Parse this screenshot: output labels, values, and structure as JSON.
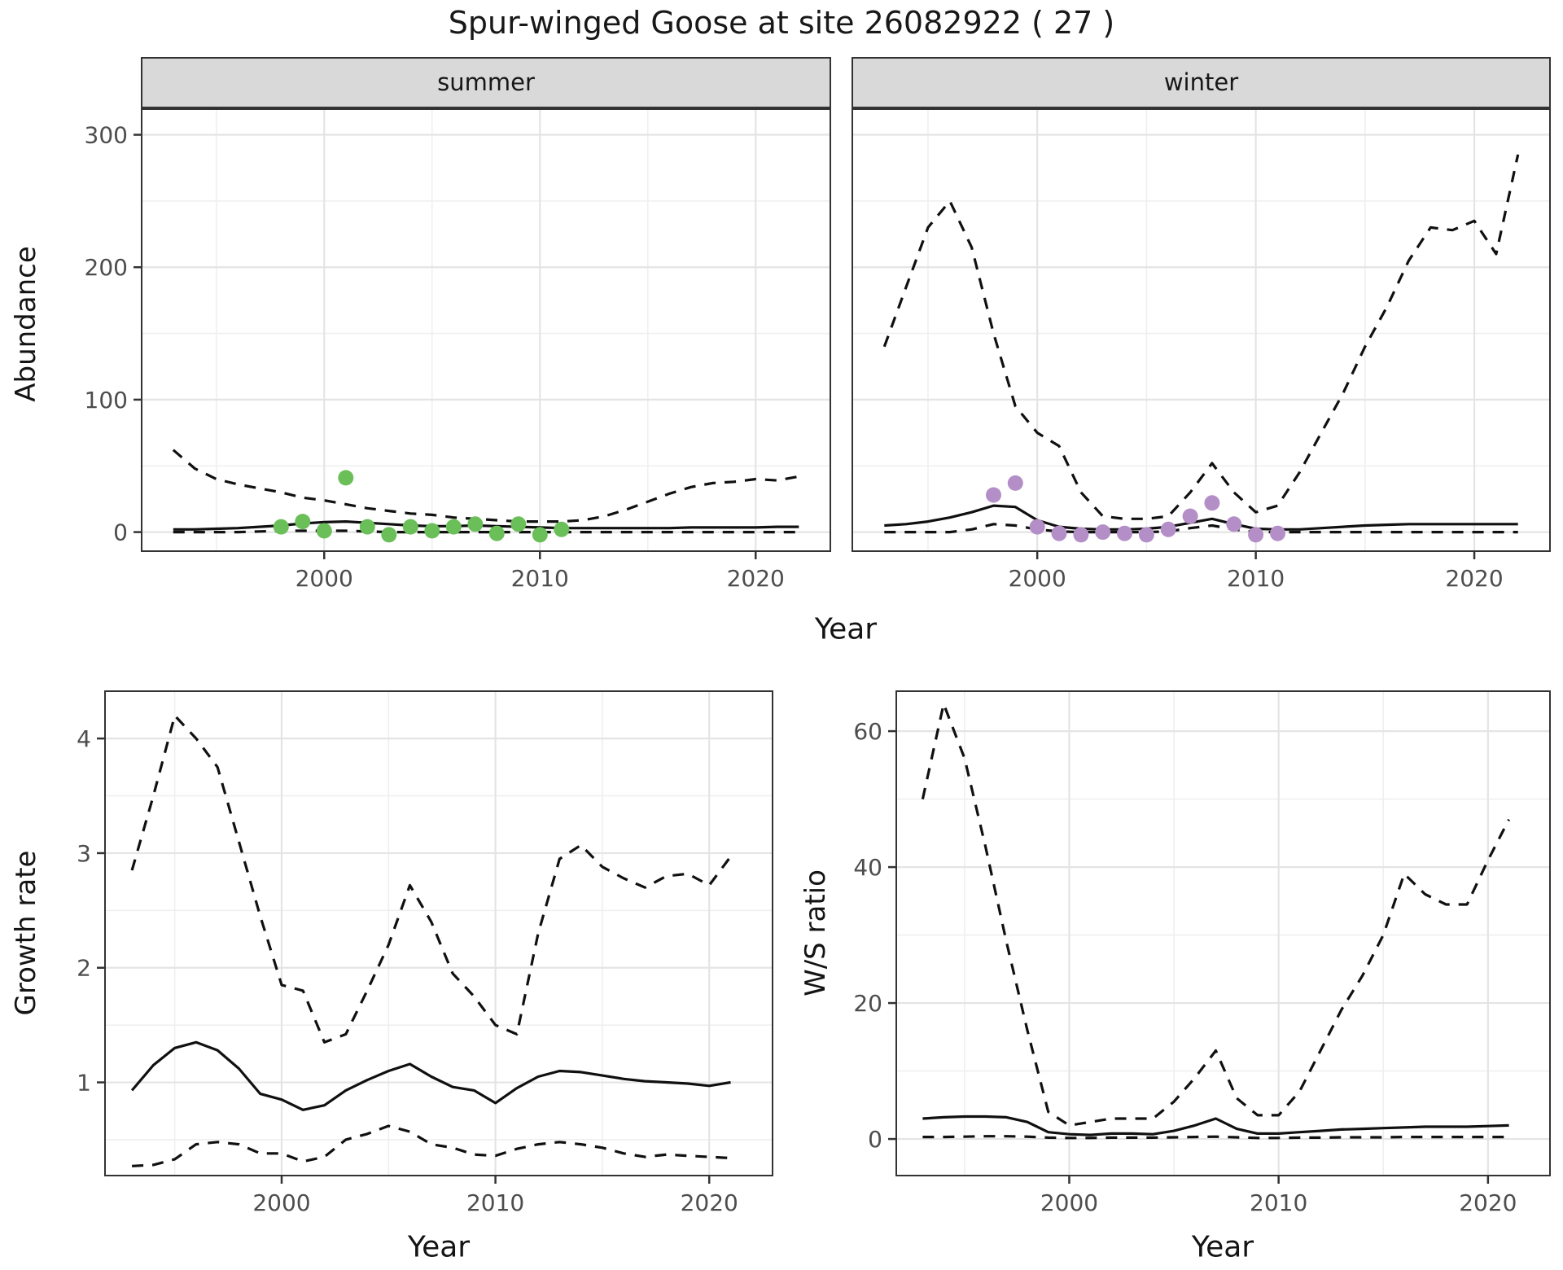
{
  "title": "Spur-winged Goose at site 26082922 ( 27 )",
  "top_row": {
    "ylabel": "Abundance",
    "xlabel": "Year",
    "facets": [
      "summer",
      "winter"
    ]
  },
  "bottom_left": {
    "ylabel": "Growth rate",
    "xlabel": "Year"
  },
  "bottom_right": {
    "ylabel": "W/S ratio",
    "xlabel": "Year"
  },
  "colors": {
    "summer_points": "#6abf59",
    "winter_points": "#b48fc7",
    "line": "#101010",
    "grid_major": "#e4e4e4",
    "grid_minor": "#efefef",
    "panel_border": "#333333",
    "tick_text": "#4d4d4d",
    "strip_bg": "#d9d9d9"
  },
  "chart_data": [
    {
      "id": "summer",
      "type": "line",
      "facet": "summer",
      "xlabel": "Year",
      "ylabel": "Abundance",
      "xlim": [
        1991.5,
        2023.5
      ],
      "ylim": [
        -15,
        320
      ],
      "xticks": [
        2000,
        2010,
        2020
      ],
      "xminor": [
        1995,
        2005,
        2015
      ],
      "yticks": [
        0,
        100,
        200,
        300
      ],
      "yminor": [
        50,
        150,
        250
      ],
      "show_y_axis": true,
      "x": [
        1993,
        1994,
        1995,
        1996,
        1997,
        1998,
        1999,
        2000,
        2001,
        2002,
        2003,
        2004,
        2005,
        2006,
        2007,
        2008,
        2009,
        2010,
        2011,
        2012,
        2013,
        2014,
        2015,
        2016,
        2017,
        2018,
        2019,
        2020,
        2021,
        2022
      ],
      "series": [
        {
          "name": "model fit",
          "style": "solid",
          "values": [
            2,
            2,
            2.5,
            3,
            4,
            5,
            6.5,
            7.5,
            8,
            7,
            6,
            5,
            4.5,
            4.5,
            5,
            4.5,
            4,
            3.5,
            3,
            3,
            3,
            3,
            3,
            3,
            3.5,
            3.5,
            3.5,
            3.5,
            4,
            4
          ]
        },
        {
          "name": "upper 95% CI",
          "style": "dashed",
          "values": [
            62,
            48,
            40,
            36,
            33,
            30,
            26,
            24,
            21,
            18,
            16,
            14,
            13,
            11,
            10,
            9,
            8,
            8,
            8,
            9,
            12,
            17,
            23,
            29,
            34,
            37,
            38,
            40,
            39,
            42
          ]
        },
        {
          "name": "lower 95% CI",
          "style": "dashed",
          "values": [
            0,
            0,
            0,
            0,
            0.5,
            1,
            1,
            1,
            1,
            0.5,
            0,
            0,
            0,
            0,
            0,
            0,
            0,
            0,
            0,
            0,
            0,
            0,
            0,
            0,
            0,
            0,
            0,
            0,
            0,
            0
          ]
        }
      ],
      "points": {
        "label": "observed summer counts",
        "color": "#6abf59",
        "years": [
          1998,
          1999,
          2000,
          2001,
          2002,
          2003,
          2004,
          2005,
          2006,
          2007,
          2008,
          2009,
          2010,
          2011
        ],
        "values": [
          4,
          8,
          1,
          41,
          4,
          -2,
          4,
          1,
          4,
          6,
          -1,
          6,
          -2,
          2
        ]
      }
    },
    {
      "id": "winter",
      "type": "line",
      "facet": "winter",
      "xlabel": "Year",
      "ylabel": "Abundance",
      "xlim": [
        1991.5,
        2023.5
      ],
      "ylim": [
        -15,
        320
      ],
      "xticks": [
        2000,
        2010,
        2020
      ],
      "xminor": [
        1995,
        2005,
        2015
      ],
      "yticks": [
        0,
        100,
        200,
        300
      ],
      "yminor": [
        50,
        150,
        250
      ],
      "show_y_axis": false,
      "x": [
        1993,
        1994,
        1995,
        1996,
        1997,
        1998,
        1999,
        2000,
        2001,
        2002,
        2003,
        2004,
        2005,
        2006,
        2007,
        2008,
        2009,
        2010,
        2011,
        2012,
        2013,
        2014,
        2015,
        2016,
        2017,
        2018,
        2019,
        2020,
        2021,
        2022
      ],
      "series": [
        {
          "name": "model fit",
          "style": "solid",
          "values": [
            5,
            6,
            8,
            11,
            15,
            20,
            19,
            9,
            4,
            2.5,
            2,
            2,
            2.5,
            4,
            7,
            10,
            6,
            2.5,
            2,
            2,
            3,
            4,
            5,
            5.5,
            6,
            6,
            6,
            6,
            6,
            6
          ]
        },
        {
          "name": "upper 95% CI",
          "style": "dashed",
          "values": [
            140,
            185,
            230,
            250,
            215,
            150,
            95,
            75,
            65,
            30,
            12,
            10,
            10,
            12,
            30,
            52,
            30,
            15,
            20,
            45,
            75,
            105,
            140,
            170,
            205,
            230,
            228,
            235,
            210,
            285
          ]
        },
        {
          "name": "lower 95% CI",
          "style": "dashed",
          "values": [
            0,
            0,
            0,
            0,
            2,
            6,
            5,
            2,
            0.5,
            0,
            0,
            0,
            0,
            0.5,
            3,
            5,
            2,
            0,
            0,
            0,
            0,
            0,
            0,
            0,
            0,
            0,
            0,
            0,
            0,
            0
          ]
        }
      ],
      "points": {
        "label": "observed winter counts",
        "color": "#b48fc7",
        "years": [
          1998,
          1999,
          2000,
          2001,
          2002,
          2003,
          2004,
          2005,
          2006,
          2007,
          2008,
          2009,
          2010,
          2011
        ],
        "values": [
          28,
          37,
          4,
          -1,
          -2,
          0,
          -1,
          -2,
          2,
          12,
          22,
          6,
          -2,
          -1
        ]
      }
    },
    {
      "id": "growth",
      "type": "line",
      "xlabel": "Year",
      "ylabel": "Growth rate",
      "xlim": [
        1991.7,
        2023.0
      ],
      "ylim": [
        0.18,
        4.42
      ],
      "xticks": [
        2000,
        2010,
        2020
      ],
      "xminor": [
        1995,
        2005,
        2015
      ],
      "yticks": [
        1,
        2,
        3,
        4
      ],
      "yminor": [
        0.5,
        1.5,
        2.5,
        3.5
      ],
      "show_y_axis": true,
      "x": [
        1993,
        1994,
        1995,
        1996,
        1997,
        1998,
        1999,
        2000,
        2001,
        2002,
        2003,
        2004,
        2005,
        2006,
        2007,
        2008,
        2009,
        2010,
        2011,
        2012,
        2013,
        2014,
        2015,
        2016,
        2017,
        2018,
        2019,
        2020,
        2021
      ],
      "series": [
        {
          "name": "model fit",
          "style": "solid",
          "values": [
            0.93,
            1.15,
            1.3,
            1.35,
            1.28,
            1.12,
            0.9,
            0.85,
            0.76,
            0.8,
            0.93,
            1.02,
            1.1,
            1.16,
            1.05,
            0.96,
            0.93,
            0.82,
            0.95,
            1.05,
            1.1,
            1.09,
            1.06,
            1.03,
            1.01,
            1.0,
            0.99,
            0.97,
            1.0
          ]
        },
        {
          "name": "upper 95% CI",
          "style": "dashed",
          "values": [
            2.85,
            3.5,
            4.2,
            4.0,
            3.75,
            3.1,
            2.45,
            1.85,
            1.8,
            1.35,
            1.42,
            1.8,
            2.2,
            2.72,
            2.4,
            1.95,
            1.75,
            1.5,
            1.42,
            2.3,
            2.95,
            3.07,
            2.88,
            2.78,
            2.7,
            2.8,
            2.82,
            2.72,
            2.97
          ]
        },
        {
          "name": "lower 95% CI",
          "style": "dashed",
          "values": [
            0.27,
            0.28,
            0.33,
            0.46,
            0.48,
            0.46,
            0.38,
            0.38,
            0.31,
            0.35,
            0.5,
            0.55,
            0.62,
            0.57,
            0.46,
            0.43,
            0.37,
            0.36,
            0.42,
            0.46,
            0.48,
            0.46,
            0.43,
            0.38,
            0.35,
            0.37,
            0.36,
            0.35,
            0.34
          ]
        }
      ]
    },
    {
      "id": "wsratio",
      "type": "line",
      "xlabel": "Year",
      "ylabel": "W/S ratio",
      "xlim": [
        1991.7,
        2023.0
      ],
      "ylim": [
        -5.5,
        66
      ],
      "xticks": [
        2000,
        2010,
        2020
      ],
      "xminor": [
        1995,
        2005,
        2015
      ],
      "yticks": [
        0,
        20,
        40,
        60
      ],
      "yminor": [
        10,
        30,
        50
      ],
      "show_y_axis": true,
      "x": [
        1993,
        1994,
        1995,
        1996,
        1997,
        1998,
        1999,
        2000,
        2001,
        2002,
        2003,
        2004,
        2005,
        2006,
        2007,
        2008,
        2009,
        2010,
        2011,
        2012,
        2013,
        2014,
        2015,
        2016,
        2017,
        2018,
        2019,
        2020,
        2021
      ],
      "series": [
        {
          "name": "model fit",
          "style": "solid",
          "values": [
            3,
            3.2,
            3.3,
            3.3,
            3.2,
            2.5,
            1,
            0.7,
            0.6,
            0.8,
            0.8,
            0.7,
            1.2,
            2,
            3,
            1.5,
            0.8,
            0.8,
            1,
            1.2,
            1.4,
            1.5,
            1.6,
            1.7,
            1.8,
            1.8,
            1.8,
            1.9,
            2
          ]
        },
        {
          "name": "upper 95% CI",
          "style": "dashed",
          "values": [
            50,
            64,
            56,
            43,
            29,
            16,
            4,
            2,
            2.5,
            3,
            3,
            3,
            5.5,
            9,
            13,
            6,
            3.5,
            3.5,
            7,
            13,
            19,
            24,
            30,
            39,
            36,
            34.5,
            34.5,
            41,
            47
          ]
        },
        {
          "name": "lower 95% CI",
          "style": "dashed",
          "values": [
            0.3,
            0.3,
            0.35,
            0.4,
            0.4,
            0.35,
            0.2,
            0.15,
            0.15,
            0.2,
            0.2,
            0.2,
            0.25,
            0.3,
            0.35,
            0.25,
            0.15,
            0.15,
            0.2,
            0.2,
            0.25,
            0.25,
            0.25,
            0.3,
            0.3,
            0.3,
            0.3,
            0.3,
            0.3
          ]
        }
      ]
    }
  ]
}
